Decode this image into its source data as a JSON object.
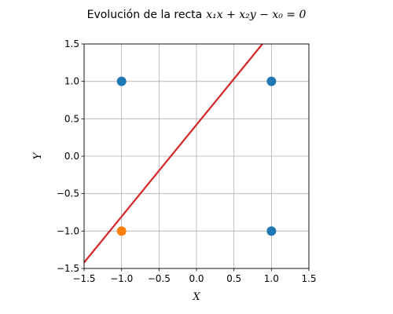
{
  "chart_data": {
    "type": "scatter",
    "title_text": "Evolución de la recta",
    "title_math": "x₁x + x₂y − x₀ = 0",
    "xlabel": "X",
    "ylabel": "Y",
    "xlim": [
      -1.5,
      1.5
    ],
    "ylim": [
      -1.5,
      1.5
    ],
    "x_ticks": [
      -1.5,
      -1.0,
      -0.5,
      0.0,
      0.5,
      1.0,
      1.5
    ],
    "y_ticks": [
      -1.5,
      -1.0,
      -0.5,
      0.0,
      0.5,
      1.0,
      1.5
    ],
    "x_tick_labels": [
      "−1.5",
      "−1.0",
      "−0.5",
      "0.0",
      "0.5",
      "1.0",
      "1.5"
    ],
    "y_tick_labels": [
      "−1.5",
      "−1.0",
      "−0.5",
      "0.0",
      "0.5",
      "1.0",
      "1.5"
    ],
    "grid": true,
    "points": [
      {
        "x": -1,
        "y": 1,
        "color": "#1f77b4"
      },
      {
        "x": 1,
        "y": 1,
        "color": "#1f77b4"
      },
      {
        "x": 1,
        "y": -1,
        "color": "#1f77b4"
      },
      {
        "x": -1,
        "y": -1,
        "color": "#ff7f0e"
      }
    ],
    "line": {
      "points": [
        [
          -1.5,
          -1.42
        ],
        [
          0.88,
          1.5
        ]
      ],
      "color": "#d62728"
    }
  }
}
